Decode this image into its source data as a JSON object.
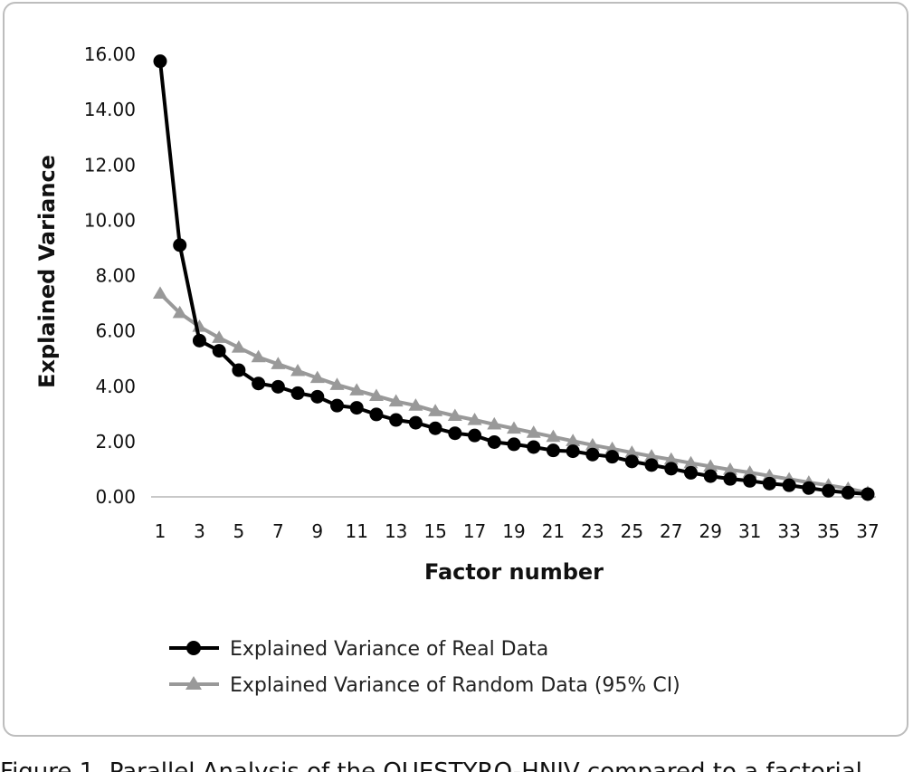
{
  "caption": "Figure 1. Parallel Analysis of the QUESTYRO-HNIV compared to a factorial...",
  "chart_data": {
    "type": "line",
    "title": "",
    "xlabel": "Factor number",
    "ylabel": "Explained Variance",
    "xlim": [
      1,
      37
    ],
    "ylim": [
      0,
      16
    ],
    "ytick_labels": [
      "0.00",
      "2.00",
      "4.00",
      "6.00",
      "8.00",
      "10.00",
      "12.00",
      "14.00",
      "16.00"
    ],
    "xtick_labels": [
      "1",
      "3",
      "5",
      "7",
      "9",
      "11",
      "13",
      "15",
      "17",
      "19",
      "21",
      "23",
      "25",
      "27",
      "29",
      "31",
      "33",
      "35",
      "37"
    ],
    "grid": false,
    "legend_position": "bottom",
    "x": [
      1,
      2,
      3,
      4,
      5,
      6,
      7,
      8,
      9,
      10,
      11,
      12,
      13,
      14,
      15,
      16,
      17,
      18,
      19,
      20,
      21,
      22,
      23,
      24,
      25,
      26,
      27,
      28,
      29,
      30,
      31,
      32,
      33,
      34,
      35,
      36,
      37
    ],
    "series": [
      {
        "name": "Explained Variance of Real Data",
        "color": "#000000",
        "marker": "circle",
        "values": [
          15.75,
          9.1,
          5.65,
          5.28,
          4.58,
          4.1,
          3.98,
          3.75,
          3.62,
          3.3,
          3.22,
          2.98,
          2.78,
          2.68,
          2.48,
          2.3,
          2.22,
          1.98,
          1.9,
          1.8,
          1.68,
          1.65,
          1.53,
          1.45,
          1.28,
          1.15,
          1.02,
          0.87,
          0.75,
          0.65,
          0.58,
          0.48,
          0.42,
          0.32,
          0.22,
          0.15,
          0.1
        ]
      },
      {
        "name": "Explained Variance of Random Data (95% CI)",
        "color": "#999999",
        "marker": "triangle",
        "values": [
          7.35,
          6.65,
          6.15,
          5.75,
          5.4,
          5.05,
          4.8,
          4.55,
          4.3,
          4.05,
          3.85,
          3.65,
          3.45,
          3.3,
          3.1,
          2.93,
          2.78,
          2.62,
          2.47,
          2.32,
          2.17,
          2.02,
          1.87,
          1.74,
          1.6,
          1.47,
          1.35,
          1.22,
          1.1,
          0.98,
          0.88,
          0.76,
          0.64,
          0.52,
          0.42,
          0.3,
          0.15
        ]
      }
    ]
  }
}
